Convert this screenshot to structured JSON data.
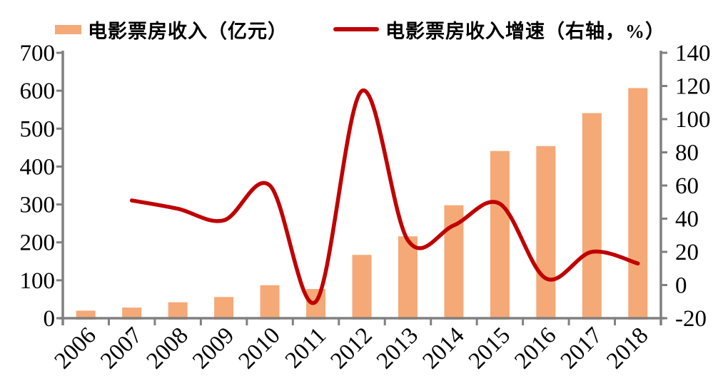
{
  "colors": {
    "bar": "#F4A977",
    "line": "#C00000",
    "axis": "#808080",
    "text": "#000000",
    "background": "#FFFFFF"
  },
  "chart_data": {
    "type": "bar",
    "title": "",
    "legend_position": "top",
    "grid": false,
    "categories": [
      "2006",
      "2007",
      "2008",
      "2009",
      "2010",
      "2011",
      "2012",
      "2013",
      "2014",
      "2015",
      "2016",
      "2017",
      "2018"
    ],
    "series": [
      {
        "name": "电影票房收入（亿元）",
        "type": "bar",
        "axis": "left",
        "color": "#F4A977",
        "categories": [
          "2006",
          "2007",
          "2008",
          "2009",
          "2010",
          "2011",
          "2012",
          "2013",
          "2014",
          "2015",
          "2016",
          "2017",
          "2018"
        ],
        "values": [
          20,
          28,
          42,
          56,
          87,
          77,
          167,
          216,
          298,
          441,
          454,
          541,
          607
        ]
      },
      {
        "name": "电影票房收入增速（右轴，%）",
        "type": "line",
        "axis": "right",
        "color": "#C00000",
        "smooth": true,
        "categories": [
          "2007",
          "2008",
          "2009",
          "2010",
          "2011",
          "2012",
          "2013",
          "2014",
          "2015",
          "2016",
          "2017",
          "2018"
        ],
        "values": [
          51,
          46,
          39,
          60,
          -10,
          117,
          27,
          36,
          49,
          4,
          20,
          13
        ]
      }
    ],
    "left_axis": {
      "min": 0,
      "max": 700,
      "step": 100,
      "ticks": [
        "0",
        "100",
        "200",
        "300",
        "400",
        "500",
        "600",
        "700"
      ]
    },
    "right_axis": {
      "min": -20,
      "max": 140,
      "step": 20,
      "ticks": [
        "-20",
        "0",
        "20",
        "40",
        "60",
        "80",
        "100",
        "120",
        "140"
      ]
    }
  }
}
